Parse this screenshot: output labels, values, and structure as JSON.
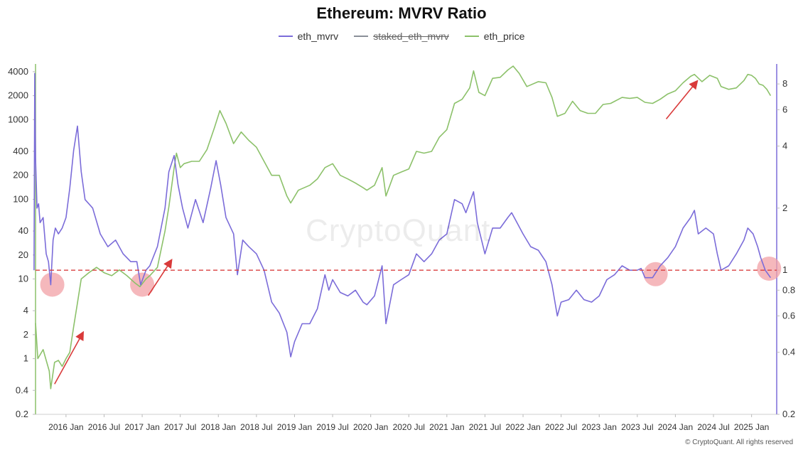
{
  "chart_data": {
    "type": "line",
    "title": "Ethereum: MVRV Ratio",
    "legend": [
      {
        "name": "eth_mvrv",
        "color": "#7b6cd9",
        "enabled": true
      },
      {
        "name": "staked_eth_mvrv",
        "color": "#8a8f98",
        "enabled": false
      },
      {
        "name": "eth_price",
        "color": "#8cc16a",
        "enabled": true
      }
    ],
    "x_tick_labels": [
      "2016 Jan",
      "2016 Jul",
      "2017 Jan",
      "2017 Jul",
      "2018 Jan",
      "2018 Jul",
      "2019 Jan",
      "2019 Jul",
      "2020 Jan",
      "2020 Jul",
      "2021 Jan",
      "2021 Jul",
      "2022 Jan",
      "2022 Jul",
      "2023 Jan",
      "2023 Jul",
      "2024 Jan",
      "2024 Jul",
      "2025 Jan"
    ],
    "x_range": [
      2015.6,
      2025.33
    ],
    "y_left": {
      "scale": "log",
      "range": [
        0.2,
        5000
      ],
      "ticks": [
        0.2,
        0.4,
        1,
        2,
        4,
        10,
        20,
        40,
        100,
        200,
        400,
        1000,
        2000,
        4000
      ],
      "tick_labels": [
        "0.2",
        "0.4",
        "1",
        "2",
        "4",
        "10",
        "20",
        "40",
        "100",
        "200",
        "400",
        "1000",
        "2000",
        "4000"
      ]
    },
    "y_right": {
      "scale": "log",
      "range": [
        0.2,
        10
      ],
      "ticks": [
        0.2,
        0.4,
        0.6,
        0.8,
        1,
        2,
        4,
        6,
        8
      ],
      "tick_labels": [
        "0.2",
        "0.4",
        "0.6",
        "0.8",
        "1",
        "2",
        "4",
        "6",
        "8"
      ]
    },
    "series": [
      {
        "name": "eth_price",
        "axis": "left",
        "points": [
          [
            2015.6,
            2.8
          ],
          [
            2015.63,
            1.0
          ],
          [
            2015.7,
            1.3
          ],
          [
            2015.78,
            0.7
          ],
          [
            2015.8,
            0.42
          ],
          [
            2015.85,
            0.9
          ],
          [
            2015.9,
            0.95
          ],
          [
            2015.95,
            0.8
          ],
          [
            2016.0,
            1.0
          ],
          [
            2016.05,
            1.2
          ],
          [
            2016.1,
            2.5
          ],
          [
            2016.15,
            5
          ],
          [
            2016.2,
            10
          ],
          [
            2016.3,
            12
          ],
          [
            2016.4,
            14
          ],
          [
            2016.5,
            12
          ],
          [
            2016.6,
            11
          ],
          [
            2016.7,
            13
          ],
          [
            2016.8,
            11
          ],
          [
            2016.9,
            9
          ],
          [
            2016.97,
            8
          ],
          [
            2017.05,
            10
          ],
          [
            2017.1,
            11
          ],
          [
            2017.2,
            14
          ],
          [
            2017.3,
            40
          ],
          [
            2017.35,
            80
          ],
          [
            2017.42,
            250
          ],
          [
            2017.45,
            380
          ],
          [
            2017.5,
            250
          ],
          [
            2017.55,
            280
          ],
          [
            2017.65,
            300
          ],
          [
            2017.75,
            300
          ],
          [
            2017.85,
            420
          ],
          [
            2017.95,
            800
          ],
          [
            2018.02,
            1300
          ],
          [
            2018.1,
            900
          ],
          [
            2018.2,
            500
          ],
          [
            2018.3,
            700
          ],
          [
            2018.4,
            550
          ],
          [
            2018.5,
            450
          ],
          [
            2018.6,
            300
          ],
          [
            2018.7,
            200
          ],
          [
            2018.8,
            200
          ],
          [
            2018.9,
            110
          ],
          [
            2018.95,
            90
          ],
          [
            2019.05,
            130
          ],
          [
            2019.2,
            150
          ],
          [
            2019.3,
            180
          ],
          [
            2019.4,
            250
          ],
          [
            2019.5,
            280
          ],
          [
            2019.6,
            200
          ],
          [
            2019.7,
            180
          ],
          [
            2019.8,
            160
          ],
          [
            2019.9,
            140
          ],
          [
            2019.95,
            130
          ],
          [
            2020.05,
            150
          ],
          [
            2020.15,
            250
          ],
          [
            2020.2,
            110
          ],
          [
            2020.3,
            200
          ],
          [
            2020.4,
            220
          ],
          [
            2020.5,
            240
          ],
          [
            2020.6,
            400
          ],
          [
            2020.7,
            380
          ],
          [
            2020.8,
            400
          ],
          [
            2020.9,
            600
          ],
          [
            2021.0,
            750
          ],
          [
            2021.1,
            1600
          ],
          [
            2021.2,
            1800
          ],
          [
            2021.3,
            2500
          ],
          [
            2021.35,
            4100
          ],
          [
            2021.42,
            2200
          ],
          [
            2021.5,
            2000
          ],
          [
            2021.6,
            3300
          ],
          [
            2021.7,
            3400
          ],
          [
            2021.8,
            4200
          ],
          [
            2021.87,
            4700
          ],
          [
            2021.95,
            3800
          ],
          [
            2022.05,
            2600
          ],
          [
            2022.2,
            3000
          ],
          [
            2022.3,
            2900
          ],
          [
            2022.38,
            1900
          ],
          [
            2022.45,
            1100
          ],
          [
            2022.55,
            1200
          ],
          [
            2022.65,
            1700
          ],
          [
            2022.75,
            1300
          ],
          [
            2022.85,
            1200
          ],
          [
            2022.95,
            1200
          ],
          [
            2023.05,
            1550
          ],
          [
            2023.15,
            1600
          ],
          [
            2023.3,
            1900
          ],
          [
            2023.4,
            1850
          ],
          [
            2023.5,
            1900
          ],
          [
            2023.6,
            1650
          ],
          [
            2023.7,
            1600
          ],
          [
            2023.8,
            1800
          ],
          [
            2023.9,
            2100
          ],
          [
            2024.0,
            2300
          ],
          [
            2024.1,
            2900
          ],
          [
            2024.2,
            3500
          ],
          [
            2024.25,
            3700
          ],
          [
            2024.35,
            3000
          ],
          [
            2024.45,
            3600
          ],
          [
            2024.55,
            3300
          ],
          [
            2024.6,
            2600
          ],
          [
            2024.7,
            2400
          ],
          [
            2024.8,
            2500
          ],
          [
            2024.9,
            3100
          ],
          [
            2024.95,
            3700
          ],
          [
            2025.0,
            3600
          ],
          [
            2025.05,
            3300
          ],
          [
            2025.1,
            2800
          ],
          [
            2025.15,
            2700
          ],
          [
            2025.2,
            2400
          ],
          [
            2025.25,
            2000
          ]
        ]
      },
      {
        "name": "eth_mvrv",
        "axis": "right",
        "points": [
          [
            2015.58,
            1.0
          ],
          [
            2015.59,
            9
          ],
          [
            2015.6,
            3.5
          ],
          [
            2015.62,
            2.0
          ],
          [
            2015.64,
            2.1
          ],
          [
            2015.66,
            1.7
          ],
          [
            2015.7,
            1.8
          ],
          [
            2015.74,
            1.2
          ],
          [
            2015.77,
            1.1
          ],
          [
            2015.8,
            0.85
          ],
          [
            2015.83,
            1.4
          ],
          [
            2015.86,
            1.6
          ],
          [
            2015.9,
            1.5
          ],
          [
            2015.95,
            1.6
          ],
          [
            2016.0,
            1.8
          ],
          [
            2016.05,
            2.5
          ],
          [
            2016.1,
            3.8
          ],
          [
            2016.15,
            5.0
          ],
          [
            2016.2,
            3.0
          ],
          [
            2016.25,
            2.2
          ],
          [
            2016.35,
            2.0
          ],
          [
            2016.45,
            1.5
          ],
          [
            2016.55,
            1.3
          ],
          [
            2016.65,
            1.4
          ],
          [
            2016.75,
            1.2
          ],
          [
            2016.85,
            1.1
          ],
          [
            2016.93,
            1.1
          ],
          [
            2016.98,
            0.85
          ],
          [
            2017.05,
            1.0
          ],
          [
            2017.1,
            1.05
          ],
          [
            2017.2,
            1.3
          ],
          [
            2017.3,
            2.0
          ],
          [
            2017.35,
            3.0
          ],
          [
            2017.42,
            3.6
          ],
          [
            2017.47,
            2.6
          ],
          [
            2017.53,
            2.0
          ],
          [
            2017.6,
            1.6
          ],
          [
            2017.7,
            2.2
          ],
          [
            2017.8,
            1.7
          ],
          [
            2017.9,
            2.5
          ],
          [
            2017.97,
            3.4
          ],
          [
            2018.03,
            2.6
          ],
          [
            2018.1,
            1.8
          ],
          [
            2018.2,
            1.5
          ],
          [
            2018.25,
            0.95
          ],
          [
            2018.32,
            1.4
          ],
          [
            2018.4,
            1.3
          ],
          [
            2018.5,
            1.2
          ],
          [
            2018.6,
            1.0
          ],
          [
            2018.7,
            0.7
          ],
          [
            2018.8,
            0.62
          ],
          [
            2018.9,
            0.5
          ],
          [
            2018.95,
            0.38
          ],
          [
            2019.0,
            0.45
          ],
          [
            2019.1,
            0.55
          ],
          [
            2019.2,
            0.55
          ],
          [
            2019.3,
            0.65
          ],
          [
            2019.4,
            0.95
          ],
          [
            2019.45,
            0.8
          ],
          [
            2019.5,
            0.9
          ],
          [
            2019.6,
            0.78
          ],
          [
            2019.7,
            0.75
          ],
          [
            2019.8,
            0.8
          ],
          [
            2019.9,
            0.7
          ],
          [
            2019.95,
            0.68
          ],
          [
            2020.05,
            0.75
          ],
          [
            2020.15,
            1.05
          ],
          [
            2020.2,
            0.55
          ],
          [
            2020.3,
            0.85
          ],
          [
            2020.4,
            0.9
          ],
          [
            2020.5,
            0.95
          ],
          [
            2020.6,
            1.2
          ],
          [
            2020.7,
            1.1
          ],
          [
            2020.8,
            1.2
          ],
          [
            2020.9,
            1.4
          ],
          [
            2021.0,
            1.5
          ],
          [
            2021.1,
            2.2
          ],
          [
            2021.2,
            2.1
          ],
          [
            2021.25,
            1.9
          ],
          [
            2021.35,
            2.4
          ],
          [
            2021.4,
            1.7
          ],
          [
            2021.5,
            1.2
          ],
          [
            2021.6,
            1.6
          ],
          [
            2021.7,
            1.6
          ],
          [
            2021.8,
            1.8
          ],
          [
            2021.85,
            1.9
          ],
          [
            2021.92,
            1.7
          ],
          [
            2022.0,
            1.5
          ],
          [
            2022.1,
            1.3
          ],
          [
            2022.2,
            1.25
          ],
          [
            2022.3,
            1.1
          ],
          [
            2022.38,
            0.85
          ],
          [
            2022.45,
            0.6
          ],
          [
            2022.5,
            0.7
          ],
          [
            2022.6,
            0.72
          ],
          [
            2022.7,
            0.8
          ],
          [
            2022.8,
            0.72
          ],
          [
            2022.9,
            0.7
          ],
          [
            2023.0,
            0.75
          ],
          [
            2023.1,
            0.9
          ],
          [
            2023.2,
            0.95
          ],
          [
            2023.3,
            1.05
          ],
          [
            2023.4,
            1.0
          ],
          [
            2023.5,
            1.0
          ],
          [
            2023.55,
            1.02
          ],
          [
            2023.6,
            0.92
          ],
          [
            2023.7,
            0.92
          ],
          [
            2023.8,
            1.05
          ],
          [
            2023.9,
            1.15
          ],
          [
            2024.0,
            1.3
          ],
          [
            2024.1,
            1.6
          ],
          [
            2024.2,
            1.8
          ],
          [
            2024.25,
            1.95
          ],
          [
            2024.3,
            1.5
          ],
          [
            2024.4,
            1.6
          ],
          [
            2024.5,
            1.5
          ],
          [
            2024.55,
            1.2
          ],
          [
            2024.6,
            1.0
          ],
          [
            2024.7,
            1.05
          ],
          [
            2024.8,
            1.2
          ],
          [
            2024.9,
            1.4
          ],
          [
            2024.95,
            1.6
          ],
          [
            2025.02,
            1.5
          ],
          [
            2025.08,
            1.3
          ],
          [
            2025.12,
            1.15
          ],
          [
            2025.18,
            1.0
          ],
          [
            2025.25,
            0.92
          ]
        ]
      }
    ],
    "reference_line": {
      "axis": "right",
      "value": 1.0,
      "color": "#d94040",
      "style": "dashed"
    },
    "highlight_markers": [
      {
        "x": 2015.82,
        "y_left": 8.5,
        "color": "#f2a0a6"
      },
      {
        "x": 2017.0,
        "y_left": 8.5,
        "color": "#f2a0a6"
      },
      {
        "x": 2023.74,
        "y_left": 11.5,
        "color": "#f2a0a6"
      },
      {
        "x": 2025.23,
        "y_left": 13.5,
        "color": "#f2a0a6"
      }
    ],
    "arrows": [
      {
        "from": [
          2015.85,
          0.48
        ],
        "to": [
          2016.22,
          2.1
        ]
      },
      {
        "from": [
          2017.08,
          6.2
        ],
        "to": [
          2017.38,
          17
        ]
      },
      {
        "from": [
          2023.88,
          1020
        ],
        "to": [
          2024.28,
          3000
        ]
      }
    ],
    "watermark": "CryptoQuant",
    "copyright": "© CryptoQuant. All rights reserved",
    "colors": {
      "mvrv": "#7b6cd9",
      "price": "#8cc16a",
      "staked": "#8a8f98",
      "ref": "#d94040",
      "arrow": "#d93a3a",
      "highlight": "#f2a0a6",
      "axis": "#cfcfcf"
    }
  }
}
